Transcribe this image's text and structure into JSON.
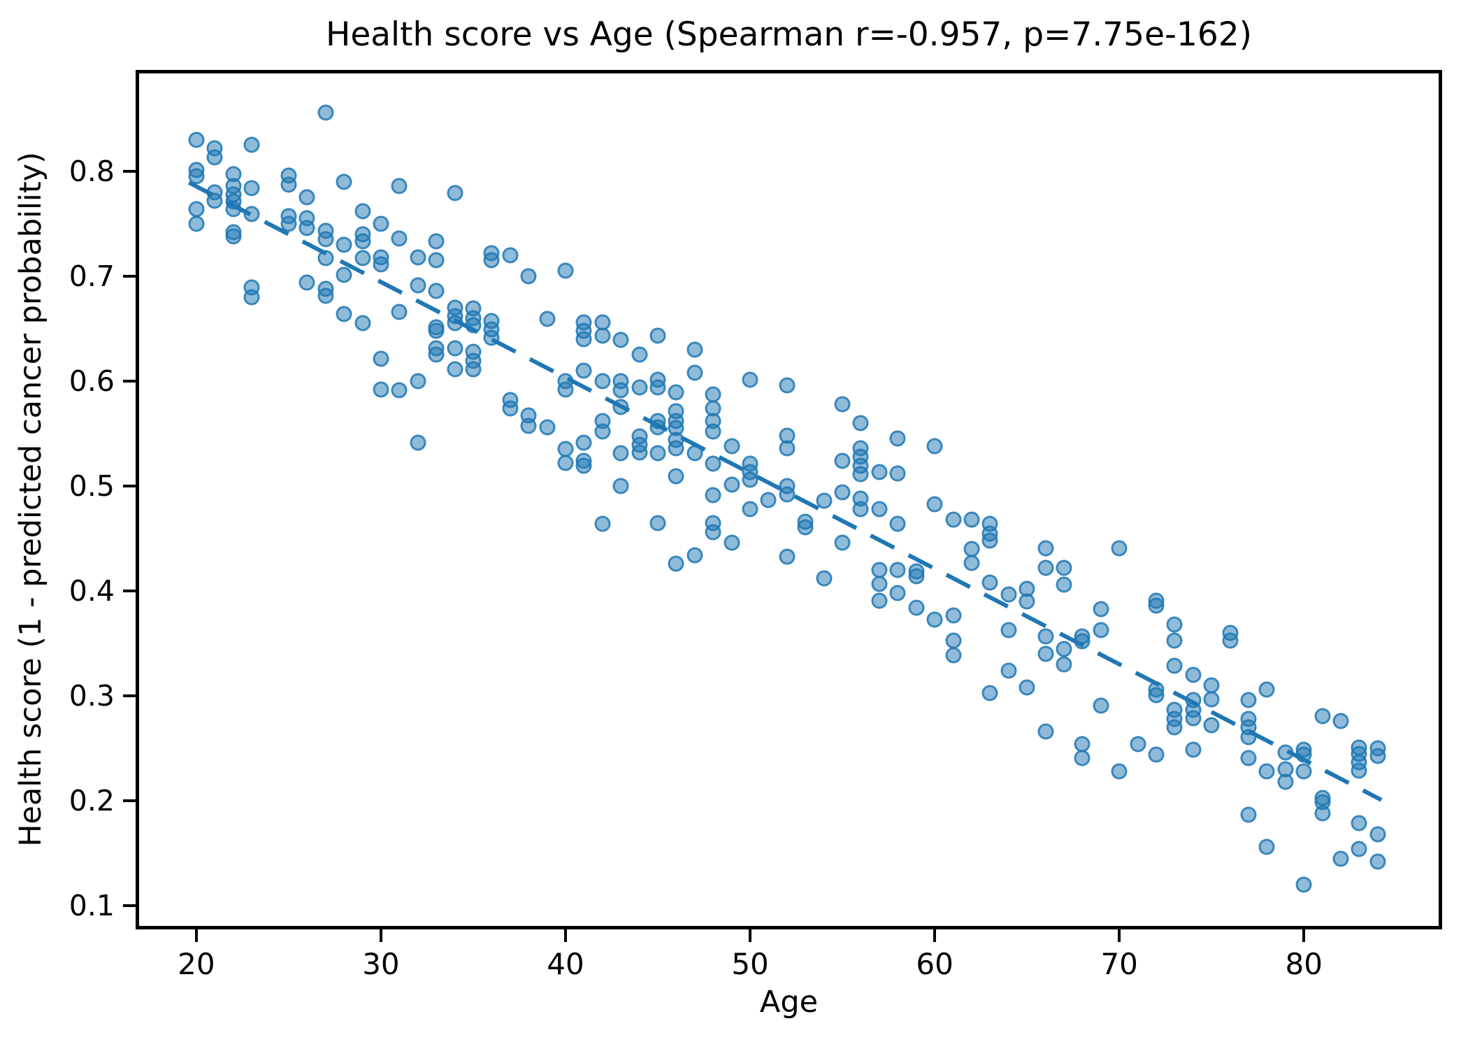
{
  "figure": {
    "title": "Health score vs Age (Spearman r=-0.957, p=7.75e-162)"
  },
  "chart_data": {
    "type": "scatter",
    "title": "Health score vs Age (Spearman r=-0.957, p=7.75e-162)",
    "xlabel": "Age",
    "ylabel": "Health score (1 - predicted cancer probability)",
    "xlim": [
      16.9,
      87.3
    ],
    "ylim": [
      0.081,
      0.893
    ],
    "x_ticks": [
      20,
      30,
      40,
      50,
      60,
      70,
      80
    ],
    "y_ticks": [
      0.1,
      0.2,
      0.3,
      0.4,
      0.5,
      0.6,
      0.7,
      0.8
    ],
    "grid": false,
    "legend": "none",
    "spearman_r": -0.957,
    "p_value": "7.75e-162",
    "marker_color": "#1f77b4",
    "marker_alpha": 0.55,
    "trendline": {
      "style": "dashed",
      "color": "#1f77b4",
      "width": 6,
      "dash": "38 23",
      "x1": 19.6,
      "y1": 0.789,
      "x2": 84.2,
      "y2": 0.201
    },
    "points": [
      [
        20,
        0.83
      ],
      [
        20,
        0.801
      ],
      [
        20,
        0.795
      ],
      [
        20,
        0.764
      ],
      [
        20,
        0.75
      ],
      [
        21,
        0.822
      ],
      [
        21,
        0.813
      ],
      [
        21,
        0.78
      ],
      [
        21,
        0.772
      ],
      [
        22,
        0.797
      ],
      [
        22,
        0.786
      ],
      [
        22,
        0.778
      ],
      [
        22,
        0.771
      ],
      [
        22,
        0.764
      ],
      [
        22,
        0.742
      ],
      [
        22,
        0.738
      ],
      [
        23,
        0.825
      ],
      [
        23,
        0.784
      ],
      [
        23,
        0.759
      ],
      [
        23,
        0.689
      ],
      [
        23,
        0.68
      ],
      [
        25,
        0.796
      ],
      [
        25,
        0.787
      ],
      [
        25,
        0.757
      ],
      [
        25,
        0.75
      ],
      [
        26,
        0.775
      ],
      [
        26,
        0.755
      ],
      [
        26,
        0.746
      ],
      [
        26,
        0.694
      ],
      [
        27,
        0.856
      ],
      [
        27,
        0.743
      ],
      [
        27,
        0.735
      ],
      [
        27,
        0.717
      ],
      [
        27,
        0.688
      ],
      [
        27,
        0.681
      ],
      [
        28,
        0.79
      ],
      [
        28,
        0.73
      ],
      [
        28,
        0.701
      ],
      [
        28,
        0.664
      ],
      [
        29,
        0.762
      ],
      [
        29,
        0.74
      ],
      [
        29,
        0.733
      ],
      [
        29,
        0.717
      ],
      [
        29,
        0.655
      ],
      [
        30,
        0.75
      ],
      [
        30,
        0.718
      ],
      [
        30,
        0.711
      ],
      [
        30,
        0.621
      ],
      [
        30,
        0.592
      ],
      [
        31,
        0.786
      ],
      [
        31,
        0.736
      ],
      [
        31,
        0.666
      ],
      [
        31,
        0.591
      ],
      [
        32,
        0.718
      ],
      [
        32,
        0.691
      ],
      [
        32,
        0.6
      ],
      [
        32,
        0.541
      ],
      [
        33,
        0.733
      ],
      [
        33,
        0.715
      ],
      [
        33,
        0.686
      ],
      [
        33,
        0.651
      ],
      [
        33,
        0.648
      ],
      [
        33,
        0.631
      ],
      [
        33,
        0.625
      ],
      [
        34,
        0.779
      ],
      [
        34,
        0.67
      ],
      [
        34,
        0.662
      ],
      [
        34,
        0.655
      ],
      [
        34,
        0.631
      ],
      [
        34,
        0.611
      ],
      [
        35,
        0.669
      ],
      [
        35,
        0.66
      ],
      [
        35,
        0.653
      ],
      [
        35,
        0.628
      ],
      [
        35,
        0.619
      ],
      [
        35,
        0.611
      ],
      [
        36,
        0.722
      ],
      [
        36,
        0.715
      ],
      [
        36,
        0.657
      ],
      [
        36,
        0.649
      ],
      [
        36,
        0.641
      ],
      [
        37,
        0.72
      ],
      [
        37,
        0.582
      ],
      [
        37,
        0.574
      ],
      [
        38,
        0.7
      ],
      [
        38,
        0.567
      ],
      [
        38,
        0.557
      ],
      [
        39,
        0.659
      ],
      [
        39,
        0.556
      ],
      [
        40,
        0.705
      ],
      [
        40,
        0.6
      ],
      [
        40,
        0.592
      ],
      [
        40,
        0.535
      ],
      [
        40,
        0.522
      ],
      [
        41,
        0.656
      ],
      [
        41,
        0.648
      ],
      [
        41,
        0.64
      ],
      [
        41,
        0.61
      ],
      [
        41,
        0.541
      ],
      [
        41,
        0.524
      ],
      [
        41,
        0.519
      ],
      [
        42,
        0.656
      ],
      [
        42,
        0.643
      ],
      [
        42,
        0.6
      ],
      [
        42,
        0.562
      ],
      [
        42,
        0.552
      ],
      [
        42,
        0.464
      ],
      [
        43,
        0.639
      ],
      [
        43,
        0.6
      ],
      [
        43,
        0.591
      ],
      [
        43,
        0.575
      ],
      [
        43,
        0.531
      ],
      [
        43,
        0.5
      ],
      [
        44,
        0.625
      ],
      [
        44,
        0.594
      ],
      [
        44,
        0.547
      ],
      [
        44,
        0.539
      ],
      [
        44,
        0.532
      ],
      [
        45,
        0.643
      ],
      [
        45,
        0.601
      ],
      [
        45,
        0.594
      ],
      [
        45,
        0.562
      ],
      [
        45,
        0.556
      ],
      [
        45,
        0.531
      ],
      [
        45,
        0.465
      ],
      [
        46,
        0.589
      ],
      [
        46,
        0.571
      ],
      [
        46,
        0.562
      ],
      [
        46,
        0.555
      ],
      [
        46,
        0.544
      ],
      [
        46,
        0.536
      ],
      [
        46,
        0.509
      ],
      [
        46,
        0.426
      ],
      [
        47,
        0.63
      ],
      [
        47,
        0.608
      ],
      [
        47,
        0.531
      ],
      [
        47,
        0.434
      ],
      [
        48,
        0.587
      ],
      [
        48,
        0.574
      ],
      [
        48,
        0.562
      ],
      [
        48,
        0.552
      ],
      [
        48,
        0.521
      ],
      [
        48,
        0.491
      ],
      [
        48,
        0.465
      ],
      [
        48,
        0.456
      ],
      [
        49,
        0.538
      ],
      [
        49,
        0.501
      ],
      [
        49,
        0.446
      ],
      [
        50,
        0.601
      ],
      [
        50,
        0.521
      ],
      [
        50,
        0.513
      ],
      [
        50,
        0.506
      ],
      [
        50,
        0.478
      ],
      [
        51,
        0.487
      ],
      [
        52,
        0.596
      ],
      [
        52,
        0.548
      ],
      [
        52,
        0.536
      ],
      [
        52,
        0.5
      ],
      [
        52,
        0.492
      ],
      [
        52,
        0.433
      ],
      [
        53,
        0.466
      ],
      [
        53,
        0.461
      ],
      [
        54,
        0.486
      ],
      [
        54,
        0.412
      ],
      [
        55,
        0.578
      ],
      [
        55,
        0.524
      ],
      [
        55,
        0.494
      ],
      [
        55,
        0.446
      ],
      [
        56,
        0.56
      ],
      [
        56,
        0.536
      ],
      [
        56,
        0.528
      ],
      [
        56,
        0.519
      ],
      [
        56,
        0.511
      ],
      [
        56,
        0.488
      ],
      [
        56,
        0.478
      ],
      [
        57,
        0.513
      ],
      [
        57,
        0.478
      ],
      [
        57,
        0.42
      ],
      [
        57,
        0.407
      ],
      [
        57,
        0.391
      ],
      [
        58,
        0.545
      ],
      [
        58,
        0.512
      ],
      [
        58,
        0.464
      ],
      [
        58,
        0.42
      ],
      [
        58,
        0.398
      ],
      [
        59,
        0.419
      ],
      [
        59,
        0.414
      ],
      [
        59,
        0.384
      ],
      [
        60,
        0.538
      ],
      [
        60,
        0.483
      ],
      [
        60,
        0.373
      ],
      [
        61,
        0.468
      ],
      [
        61,
        0.377
      ],
      [
        61,
        0.353
      ],
      [
        61,
        0.339
      ],
      [
        62,
        0.468
      ],
      [
        62,
        0.44
      ],
      [
        62,
        0.427
      ],
      [
        63,
        0.464
      ],
      [
        63,
        0.455
      ],
      [
        63,
        0.448
      ],
      [
        63,
        0.408
      ],
      [
        63,
        0.303
      ],
      [
        64,
        0.397
      ],
      [
        64,
        0.363
      ],
      [
        64,
        0.324
      ],
      [
        65,
        0.402
      ],
      [
        65,
        0.39
      ],
      [
        65,
        0.308
      ],
      [
        66,
        0.441
      ],
      [
        66,
        0.422
      ],
      [
        66,
        0.357
      ],
      [
        66,
        0.34
      ],
      [
        66,
        0.266
      ],
      [
        67,
        0.422
      ],
      [
        67,
        0.406
      ],
      [
        67,
        0.345
      ],
      [
        67,
        0.33
      ],
      [
        68,
        0.357
      ],
      [
        68,
        0.352
      ],
      [
        68,
        0.254
      ],
      [
        68,
        0.241
      ],
      [
        69,
        0.383
      ],
      [
        69,
        0.363
      ],
      [
        69,
        0.291
      ],
      [
        70,
        0.441
      ],
      [
        70,
        0.228
      ],
      [
        71,
        0.254
      ],
      [
        72,
        0.391
      ],
      [
        72,
        0.386
      ],
      [
        72,
        0.306
      ],
      [
        72,
        0.301
      ],
      [
        72,
        0.244
      ],
      [
        73,
        0.368
      ],
      [
        73,
        0.353
      ],
      [
        73,
        0.329
      ],
      [
        73,
        0.287
      ],
      [
        73,
        0.278
      ],
      [
        73,
        0.27
      ],
      [
        74,
        0.32
      ],
      [
        74,
        0.296
      ],
      [
        74,
        0.287
      ],
      [
        74,
        0.279
      ],
      [
        74,
        0.249
      ],
      [
        75,
        0.31
      ],
      [
        75,
        0.297
      ],
      [
        75,
        0.272
      ],
      [
        76,
        0.36
      ],
      [
        76,
        0.353
      ],
      [
        77,
        0.296
      ],
      [
        77,
        0.278
      ],
      [
        77,
        0.27
      ],
      [
        77,
        0.261
      ],
      [
        77,
        0.241
      ],
      [
        77,
        0.187
      ],
      [
        78,
        0.306
      ],
      [
        78,
        0.228
      ],
      [
        78,
        0.156
      ],
      [
        79,
        0.246
      ],
      [
        79,
        0.23
      ],
      [
        79,
        0.218
      ],
      [
        80,
        0.249
      ],
      [
        80,
        0.244
      ],
      [
        80,
        0.228
      ],
      [
        80,
        0.12
      ],
      [
        81,
        0.281
      ],
      [
        81,
        0.203
      ],
      [
        81,
        0.199
      ],
      [
        81,
        0.188
      ],
      [
        82,
        0.276
      ],
      [
        82,
        0.145
      ],
      [
        83,
        0.251
      ],
      [
        83,
        0.245
      ],
      [
        83,
        0.237
      ],
      [
        83,
        0.229
      ],
      [
        83,
        0.179
      ],
      [
        83,
        0.154
      ],
      [
        84,
        0.25
      ],
      [
        84,
        0.243
      ],
      [
        84,
        0.168
      ],
      [
        84,
        0.142
      ]
    ]
  }
}
